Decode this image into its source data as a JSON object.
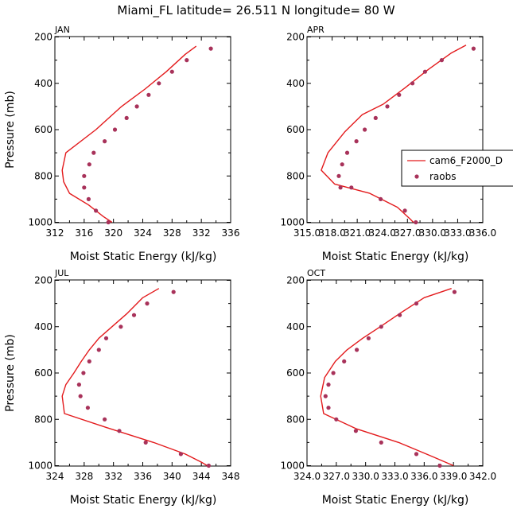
{
  "title": "Miami_FL  latitude= 26.511 N longitude= 80 W",
  "colors": {
    "model": "#e31a1c",
    "obs": "#a8325a",
    "axis": "#000000"
  },
  "legend": {
    "entries": [
      "cam6_F2000_D",
      "raobs"
    ],
    "placement": "right-middle of APR panel"
  },
  "chart_data": [
    {
      "type": "line",
      "panel_label": "JAN",
      "xlabel": "Moist Static Energy (kJ/kg)",
      "ylabel": "Pressure (mb)",
      "xlim": [
        312,
        336
      ],
      "ylim": [
        1000,
        200
      ],
      "xticks": [
        312,
        316,
        320,
        324,
        328,
        332,
        336
      ],
      "xtick_labels": [
        "312",
        "316",
        "320",
        "324",
        "328",
        "332",
        "336"
      ],
      "yticks": [
        200,
        400,
        600,
        800,
        1000
      ],
      "ytick_labels": [
        "200",
        "400",
        "600",
        "800",
        "1000"
      ],
      "series": [
        {
          "name": "cam6_F2000_D",
          "kind": "line",
          "x": [
            331.3,
            329.8,
            327.2,
            324.3,
            321.1,
            317.6,
            313.5,
            313.0,
            313.2,
            314.0,
            316.6,
            318.6,
            319.8
          ],
          "y": [
            240,
            275,
            350,
            425,
            500,
            600,
            700,
            775,
            825,
            875,
            925,
            975,
            1000
          ]
        },
        {
          "name": "raobs",
          "kind": "points",
          "x": [
            333.3,
            330.0,
            328.0,
            326.2,
            324.8,
            323.2,
            321.8,
            320.2,
            318.8,
            317.3,
            316.7,
            316.0,
            316.0,
            316.6,
            317.6,
            319.3
          ],
          "y": [
            250,
            300,
            350,
            400,
            450,
            500,
            550,
            600,
            650,
            700,
            750,
            800,
            850,
            900,
            950,
            1000
          ]
        }
      ]
    },
    {
      "type": "line",
      "panel_label": "APR",
      "xlabel": "Moist Static Energy (kJ/kg)",
      "ylabel": "",
      "xlim": [
        315.0,
        336.0
      ],
      "ylim": [
        1000,
        200
      ],
      "xticks": [
        315.0,
        318.0,
        321.0,
        324.0,
        327.0,
        330.0,
        333.0,
        336.0
      ],
      "xtick_labels": [
        "315.0",
        "318.0",
        "321.0",
        "324.0",
        "327.0",
        "330.0",
        "333.0",
        "336.0"
      ],
      "yticks": [
        200,
        400,
        600,
        800,
        1000
      ],
      "ytick_labels": [
        "200",
        "400",
        "600",
        "800",
        "1000"
      ],
      "series": [
        {
          "name": "cam6_F2000_D",
          "kind": "line",
          "x": [
            334.0,
            332.2,
            329.5,
            326.7,
            324.1,
            321.6,
            319.5,
            317.5,
            316.7,
            318.3,
            322.5,
            325.8,
            327.3,
            327.7
          ],
          "y": [
            235,
            270,
            340,
            420,
            490,
            535,
            610,
            700,
            775,
            835,
            875,
            935,
            985,
            1000
          ]
        },
        {
          "name": "raobs",
          "kind": "points",
          "x": [
            334.9,
            331.1,
            329.1,
            327.6,
            326.0,
            324.6,
            323.2,
            321.9,
            320.9,
            319.8,
            319.2,
            318.8,
            319.0,
            320.3,
            323.8,
            326.7,
            328.0
          ],
          "y": [
            250,
            300,
            350,
            400,
            450,
            500,
            550,
            600,
            650,
            700,
            750,
            800,
            850,
            850,
            900,
            950,
            1000
          ]
        }
      ]
    },
    {
      "type": "line",
      "panel_label": "JUL",
      "xlabel": "Moist Static Energy (kJ/kg)",
      "ylabel": "Pressure (mb)",
      "xlim": [
        324,
        348
      ],
      "ylim": [
        1000,
        200
      ],
      "xticks": [
        324,
        328,
        332,
        336,
        340,
        344,
        348
      ],
      "xtick_labels": [
        "324",
        "328",
        "332",
        "336",
        "340",
        "344",
        "348"
      ],
      "yticks": [
        200,
        400,
        600,
        800,
        1000
      ],
      "ytick_labels": [
        "200",
        "400",
        "600",
        "800",
        "1000"
      ],
      "series": [
        {
          "name": "cam6_F2000_D",
          "kind": "line",
          "x": [
            338.2,
            336.0,
            333.8,
            331.8,
            330.0,
            328.7,
            327.6,
            326.6,
            325.5,
            325.0,
            325.3,
            331.0,
            337.5,
            341.8,
            344.0,
            344.8
          ],
          "y": [
            235,
            275,
            345,
            400,
            450,
            500,
            550,
            600,
            650,
            700,
            775,
            835,
            900,
            950,
            985,
            1000
          ]
        },
        {
          "name": "raobs",
          "kind": "points",
          "x": [
            340.2,
            336.6,
            334.8,
            333.0,
            331.0,
            330.0,
            328.7,
            327.9,
            327.3,
            327.5,
            328.5,
            330.8,
            332.8,
            336.4,
            341.2,
            345.0
          ],
          "y": [
            250,
            300,
            350,
            400,
            450,
            500,
            550,
            600,
            650,
            700,
            750,
            800,
            850,
            900,
            950,
            1000
          ]
        }
      ]
    },
    {
      "type": "line",
      "panel_label": "OCT",
      "xlabel": "Moist Static Energy (kJ/kg)",
      "ylabel": "",
      "xlim": [
        324.0,
        342.0
      ],
      "ylim": [
        1000,
        200
      ],
      "xticks": [
        324.0,
        327.0,
        330.0,
        333.0,
        336.0,
        339.0,
        342.0
      ],
      "xtick_labels": [
        "324.0",
        "327.0",
        "330.0",
        "333.0",
        "336.0",
        "339.0",
        "342.0"
      ],
      "yticks": [
        200,
        400,
        600,
        800,
        1000
      ],
      "ytick_labels": [
        "200",
        "400",
        "600",
        "800",
        "1000"
      ],
      "series": [
        {
          "name": "cam6_F2000_D",
          "kind": "line",
          "x": [
            338.8,
            336.0,
            333.6,
            331.5,
            329.7,
            328.1,
            326.9,
            325.8,
            325.4,
            325.7,
            329.0,
            333.4,
            336.8,
            339.0
          ],
          "y": [
            235,
            275,
            340,
            400,
            450,
            500,
            550,
            620,
            700,
            775,
            840,
            900,
            960,
            1000
          ]
        },
        {
          "name": "raobs",
          "kind": "points",
          "x": [
            339.1,
            335.2,
            333.5,
            331.6,
            330.3,
            329.1,
            327.8,
            326.7,
            326.2,
            325.9,
            326.2,
            327.0,
            329.0,
            331.6,
            335.2,
            337.6
          ],
          "y": [
            250,
            300,
            350,
            400,
            450,
            500,
            550,
            600,
            650,
            700,
            750,
            800,
            850,
            900,
            950,
            1000
          ]
        }
      ]
    }
  ]
}
